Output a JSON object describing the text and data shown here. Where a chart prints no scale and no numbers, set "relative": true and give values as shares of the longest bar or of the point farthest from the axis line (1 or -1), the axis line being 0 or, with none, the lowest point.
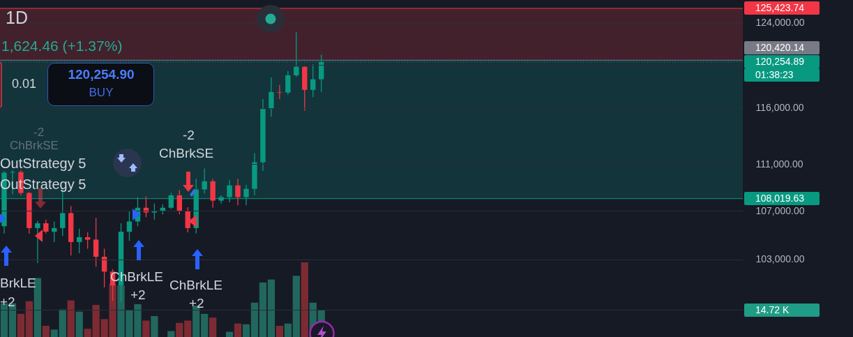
{
  "chart_data": [
    {
      "type": "candlestick",
      "title": "1D",
      "subtitle": "1,624.46 (+1.37%)",
      "categories": [
        null,
        null,
        null,
        null,
        null,
        null,
        null,
        null,
        null,
        null,
        null,
        null,
        null,
        null,
        null,
        null,
        null,
        null,
        null,
        null,
        null,
        null,
        null,
        null,
        null,
        null,
        null,
        null,
        null,
        null,
        null,
        null,
        null,
        null,
        null,
        null,
        null,
        null,
        null,
        null,
        null,
        null,
        null,
        null,
        null,
        null,
        null,
        null,
        null,
        null,
        null,
        null,
        null,
        null,
        null,
        null,
        null,
        null,
        null,
        null,
        null,
        null,
        null,
        null,
        null,
        null,
        null,
        null,
        null,
        null,
        null,
        null,
        null,
        null,
        null,
        null,
        null,
        null,
        null,
        null,
        null,
        null,
        null,
        null,
        null,
        null,
        null,
        null,
        null
      ],
      "ohlc": [
        [
          105700,
          110400,
          105100,
          110250
        ],
        [
          110250,
          110450,
          108400,
          110300
        ],
        [
          110300,
          110450,
          108300,
          108500
        ],
        [
          108500,
          108600,
          105100,
          105550
        ],
        [
          105550,
          106150,
          102700,
          105950
        ],
        [
          105950,
          106250,
          105100,
          105250
        ],
        [
          105250,
          106100,
          104400,
          105550
        ],
        [
          105550,
          108900,
          104900,
          106800
        ],
        [
          106800,
          107400,
          103300,
          104400
        ],
        [
          104400,
          105500,
          103500,
          104800
        ],
        [
          104800,
          105200,
          103850,
          104600
        ],
        [
          104600,
          106400,
          102400,
          103200
        ],
        [
          103200,
          103850,
          100750,
          102000
        ],
        [
          102000,
          102200,
          99700,
          100900
        ],
        [
          100900,
          105950,
          99600,
          105250
        ],
        [
          105250,
          107000,
          104500,
          106100
        ],
        [
          106100,
          108150,
          105700,
          107250
        ],
        [
          107250,
          108200,
          106450,
          106850
        ],
        [
          106850,
          107600,
          106250,
          106950
        ],
        [
          106950,
          107550,
          106700,
          107250
        ],
        [
          107250,
          108500,
          107150,
          108300
        ],
        [
          108300,
          108750,
          106700,
          107000
        ],
        [
          107000,
          107300,
          105200,
          105550
        ],
        [
          105550,
          109700,
          105100,
          108800
        ],
        [
          108800,
          110600,
          108450,
          109500
        ],
        [
          109500,
          109700,
          107250,
          107850
        ],
        [
          107850,
          108300,
          107600,
          108150
        ],
        [
          108150,
          109600,
          107700,
          109150
        ],
        [
          109150,
          109700,
          107450,
          108150
        ],
        [
          108150,
          109200,
          107450,
          108850
        ],
        [
          108850,
          111950,
          108300,
          111150
        ],
        [
          111150,
          116800,
          110400,
          115900
        ],
        [
          115900,
          118800,
          115200,
          117450
        ],
        [
          117450,
          118100,
          116800,
          117400
        ],
        [
          117400,
          119400,
          117200,
          119000
        ],
        [
          119000,
          123100,
          118850,
          119800
        ],
        [
          119800,
          119850,
          115750,
          117650
        ],
        [
          117650,
          120050,
          117000,
          118630
        ],
        [
          118630,
          120950,
          117450,
          120254.89
        ],
        null,
        null,
        null,
        null,
        null,
        null,
        null,
        null,
        null,
        null,
        null,
        null,
        null,
        null,
        null,
        null,
        null,
        null,
        null,
        null,
        null,
        null,
        null,
        null,
        null,
        null,
        null,
        null,
        null,
        null,
        null,
        null,
        null,
        null,
        null,
        null,
        null,
        null,
        null,
        null,
        null,
        null,
        null,
        null,
        null,
        null,
        null,
        null,
        null,
        null
      ],
      "colors": [
        "#089981",
        "#089981",
        "#f23645",
        "#f23645",
        "#089981",
        "#f23645",
        "#089981",
        "#089981",
        "#f23645",
        "#089981",
        "#f23645",
        "#f23645",
        "#f23645",
        "#f23645",
        "#089981",
        "#089981",
        "#089981",
        "#f23645",
        "#089981",
        "#089981",
        "#089981",
        "#f23645",
        "#f23645",
        "#089981",
        "#089981",
        "#f23645",
        "#089981",
        "#089981",
        "#f23645",
        "#089981",
        "#089981",
        "#089981",
        "#089981",
        "#f23645",
        "#089981",
        "#089981",
        "#f23645",
        "#089981",
        "#089981",
        null,
        null,
        null,
        null,
        null,
        null,
        null,
        null,
        null,
        null,
        null,
        null,
        null,
        null,
        null,
        null,
        null,
        null,
        null,
        null,
        null,
        null,
        null,
        null,
        null,
        null,
        null,
        null,
        null,
        null,
        null,
        null,
        null,
        null,
        null,
        null,
        null,
        null,
        null,
        null,
        null,
        null,
        null,
        null,
        null,
        null,
        null,
        null,
        null,
        null
      ],
      "ylim": [
        96900,
        126250
      ],
      "log": true,
      "yticks": [
        {
          "value": 124000,
          "label": "124,000.00"
        },
        {
          "value": 120000,
          "label": null
        },
        {
          "value": 116000,
          "label": "116,000.00"
        },
        {
          "value": 111000,
          "label": "111,000.00"
        },
        {
          "value": 107000,
          "label": "107,000.00"
        },
        {
          "value": 103000,
          "label": "103,000.00"
        },
        {
          "value": 99000,
          "label": null
        }
      ],
      "grid": "y",
      "bands": [
        {
          "axis": "y",
          "from": 120420.14,
          "to": 125423.74,
          "color": "#43212c"
        },
        {
          "axis": "y",
          "from": 108019.63,
          "to": 120420.14,
          "color": "#13343a"
        }
      ],
      "ref_lines": [
        {
          "axis": "y",
          "value": 125423.74,
          "label": "125,423.74",
          "color": "#f23645"
        },
        {
          "axis": "y",
          "value": 120420.14,
          "label": "120,420.14",
          "color": "#787b86"
        },
        {
          "axis": "y",
          "value": 120254.89,
          "label": "120,254.89",
          "color": "#089981",
          "line_style": "dotted"
        },
        {
          "axis": "y",
          "value": 108019.63,
          "label": "108,019.63",
          "color": "#089981"
        }
      ],
      "annotations": [
        "0.01",
        "120,254.90",
        "BUY",
        "-2",
        "ChBrkSE",
        "OutStrategy 5",
        "OutStrategy 5",
        "BrkLE",
        "+2",
        "ChBrkLE",
        "+2",
        "-2",
        "ChBrkSE",
        "ChBrkLE",
        "+2",
        "01:38:23"
      ]
    },
    {
      "type": "bar",
      "relative": true,
      "categories": [
        null,
        null,
        null,
        null,
        null,
        null,
        null,
        null,
        null,
        null,
        null,
        null,
        null,
        null,
        null,
        null,
        null,
        null,
        null,
        null,
        null,
        null,
        null,
        null,
        null,
        null,
        null,
        null,
        null,
        null,
        null,
        null,
        null,
        null,
        null,
        null,
        null,
        null,
        null,
        null,
        null,
        null,
        null,
        null,
        null,
        null,
        null,
        null,
        null,
        null,
        null,
        null,
        null,
        null,
        null,
        null,
        null,
        null,
        null,
        null,
        null,
        null,
        null,
        null,
        null,
        null,
        null,
        null,
        null,
        null,
        null,
        null,
        null,
        null,
        null,
        null,
        null,
        null,
        null,
        null,
        null,
        null,
        null,
        null,
        null,
        null,
        null,
        null,
        null
      ],
      "values": [
        0.45,
        0.45,
        0.31,
        0.48,
        0.79,
        0.15,
        0.1,
        0.37,
        0.49,
        0.34,
        0.11,
        0.43,
        0.24,
        0.71,
        0.69,
        0.36,
        0.44,
        0.22,
        0.28,
        null,
        0.08,
        0.19,
        0.22,
        0.42,
        0.31,
        0.26,
        null,
        0.07,
        0.18,
        0.17,
        0.46,
        0.73,
        0.77,
        0.15,
        0.18,
        0.82,
        1,
        0.46,
        0.36,
        null,
        null,
        null,
        null,
        null,
        null,
        null,
        null,
        null,
        null,
        null,
        null,
        null,
        null,
        null,
        null,
        null,
        null,
        null,
        null,
        null,
        null,
        null,
        null,
        null,
        null,
        null,
        null,
        null,
        null,
        null,
        null,
        null,
        null,
        null,
        null,
        null,
        null,
        null,
        null,
        null,
        null,
        null,
        null,
        null,
        null,
        null,
        null,
        null,
        null
      ],
      "colors": [
        "#22675e",
        "#22675e",
        "#7d2b33",
        "#7d2b33",
        "#22675e",
        "#7d2b33",
        "#22675e",
        "#22675e",
        "#7d2b33",
        "#22675e",
        "#7d2b33",
        "#7d2b33",
        "#7d2b33",
        "#7d2b33",
        "#22675e",
        "#22675e",
        "#22675e",
        "#7d2b33",
        "#22675e",
        null,
        "#22675e",
        "#7d2b33",
        "#7d2b33",
        "#22675e",
        "#22675e",
        "#7d2b33",
        null,
        "#22675e",
        "#7d2b33",
        "#22675e",
        "#22675e",
        "#22675e",
        "#22675e",
        "#7d2b33",
        "#22675e",
        "#22675e",
        "#7d2b33",
        "#22675e",
        "#22675e",
        null,
        null,
        null,
        null,
        null,
        null,
        null,
        null,
        null,
        null,
        null,
        null,
        null,
        null,
        null,
        null,
        null,
        null,
        null,
        null,
        null,
        null,
        null,
        null,
        null,
        null,
        null,
        null,
        null,
        null,
        null,
        null,
        null,
        null,
        null,
        null,
        null,
        null,
        null,
        null,
        null,
        null,
        null,
        null,
        null,
        null,
        null,
        null,
        null,
        null
      ],
      "annotations": [
        "14.72 K"
      ]
    }
  ]
}
